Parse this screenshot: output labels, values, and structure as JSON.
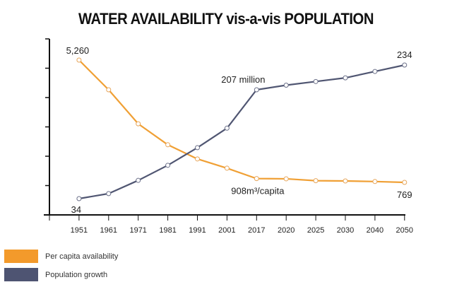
{
  "chart_data": {
    "type": "line",
    "title": "WATER AVAILABILITY vis-a-vis POPULATION",
    "xlabel": "",
    "ylabel": "",
    "categories": [
      "1951",
      "1961",
      "1971",
      "1981",
      "1991",
      "2001",
      "2017",
      "2020",
      "2025",
      "2030",
      "2040",
      "2050"
    ],
    "series": [
      {
        "name": "Per capita availability",
        "color": "#f0a035",
        "unit": "m³/capita",
        "values": [
          5260,
          4170,
          2920,
          2150,
          1630,
          1290,
          908,
          900,
          830,
          820,
          800,
          769
        ]
      },
      {
        "name": "Population growth",
        "color": "#505672",
        "unit": "million",
        "values": [
          34,
          42,
          63,
          87,
          115,
          146,
          207,
          212,
          216,
          220,
          227,
          234
        ]
      }
    ],
    "annotations": [
      {
        "text": "5,260",
        "series": 0,
        "index": 0
      },
      {
        "text": "908m³/capita",
        "series": 0,
        "index": 6
      },
      {
        "text": "769",
        "series": 0,
        "index": 11
      },
      {
        "text": "34",
        "series": 1,
        "index": 0
      },
      {
        "text": "207 million",
        "series": 1,
        "index": 6
      },
      {
        "text": "234",
        "series": 1,
        "index": 11
      }
    ],
    "y_tick_labels": [],
    "grid": false,
    "legend_position": "bottom-left"
  },
  "legend": [
    {
      "label": "Per capita availability",
      "color": "#f39a2b"
    },
    {
      "label": "Population growth",
      "color": "#4e5472"
    }
  ]
}
